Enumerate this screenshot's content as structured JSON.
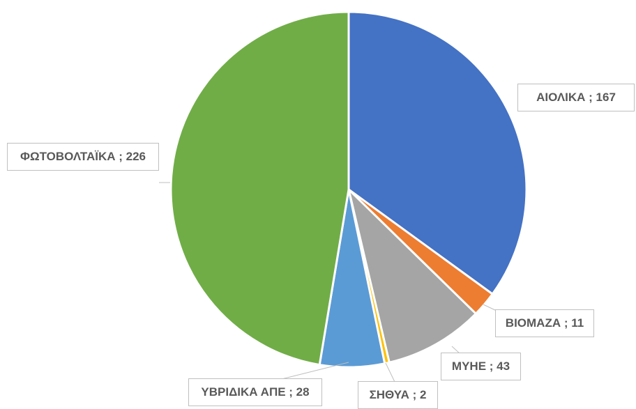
{
  "chart_data": {
    "type": "pie",
    "values": [
      167,
      11,
      43,
      2,
      28,
      226
    ],
    "value_labels": [
      "ΑΙΟΛΙΚΑ ; 167",
      "ΒΙΟΜΑΖΑ ; 11",
      "ΜΥΗΕ ; 43",
      "ΣΗΘΥΑ ; 2",
      "ΥΒΡΙΔΙΚΑ ΑΠΕ ; 28",
      "ΦΩΤΟΒΟΛΤΑΪΚΑ ; 226"
    ],
    "colors": [
      "#4472c4",
      "#ed7d31",
      "#a5a5a5",
      "#ffc000",
      "#5b9bd5",
      "#70ad47"
    ]
  }
}
